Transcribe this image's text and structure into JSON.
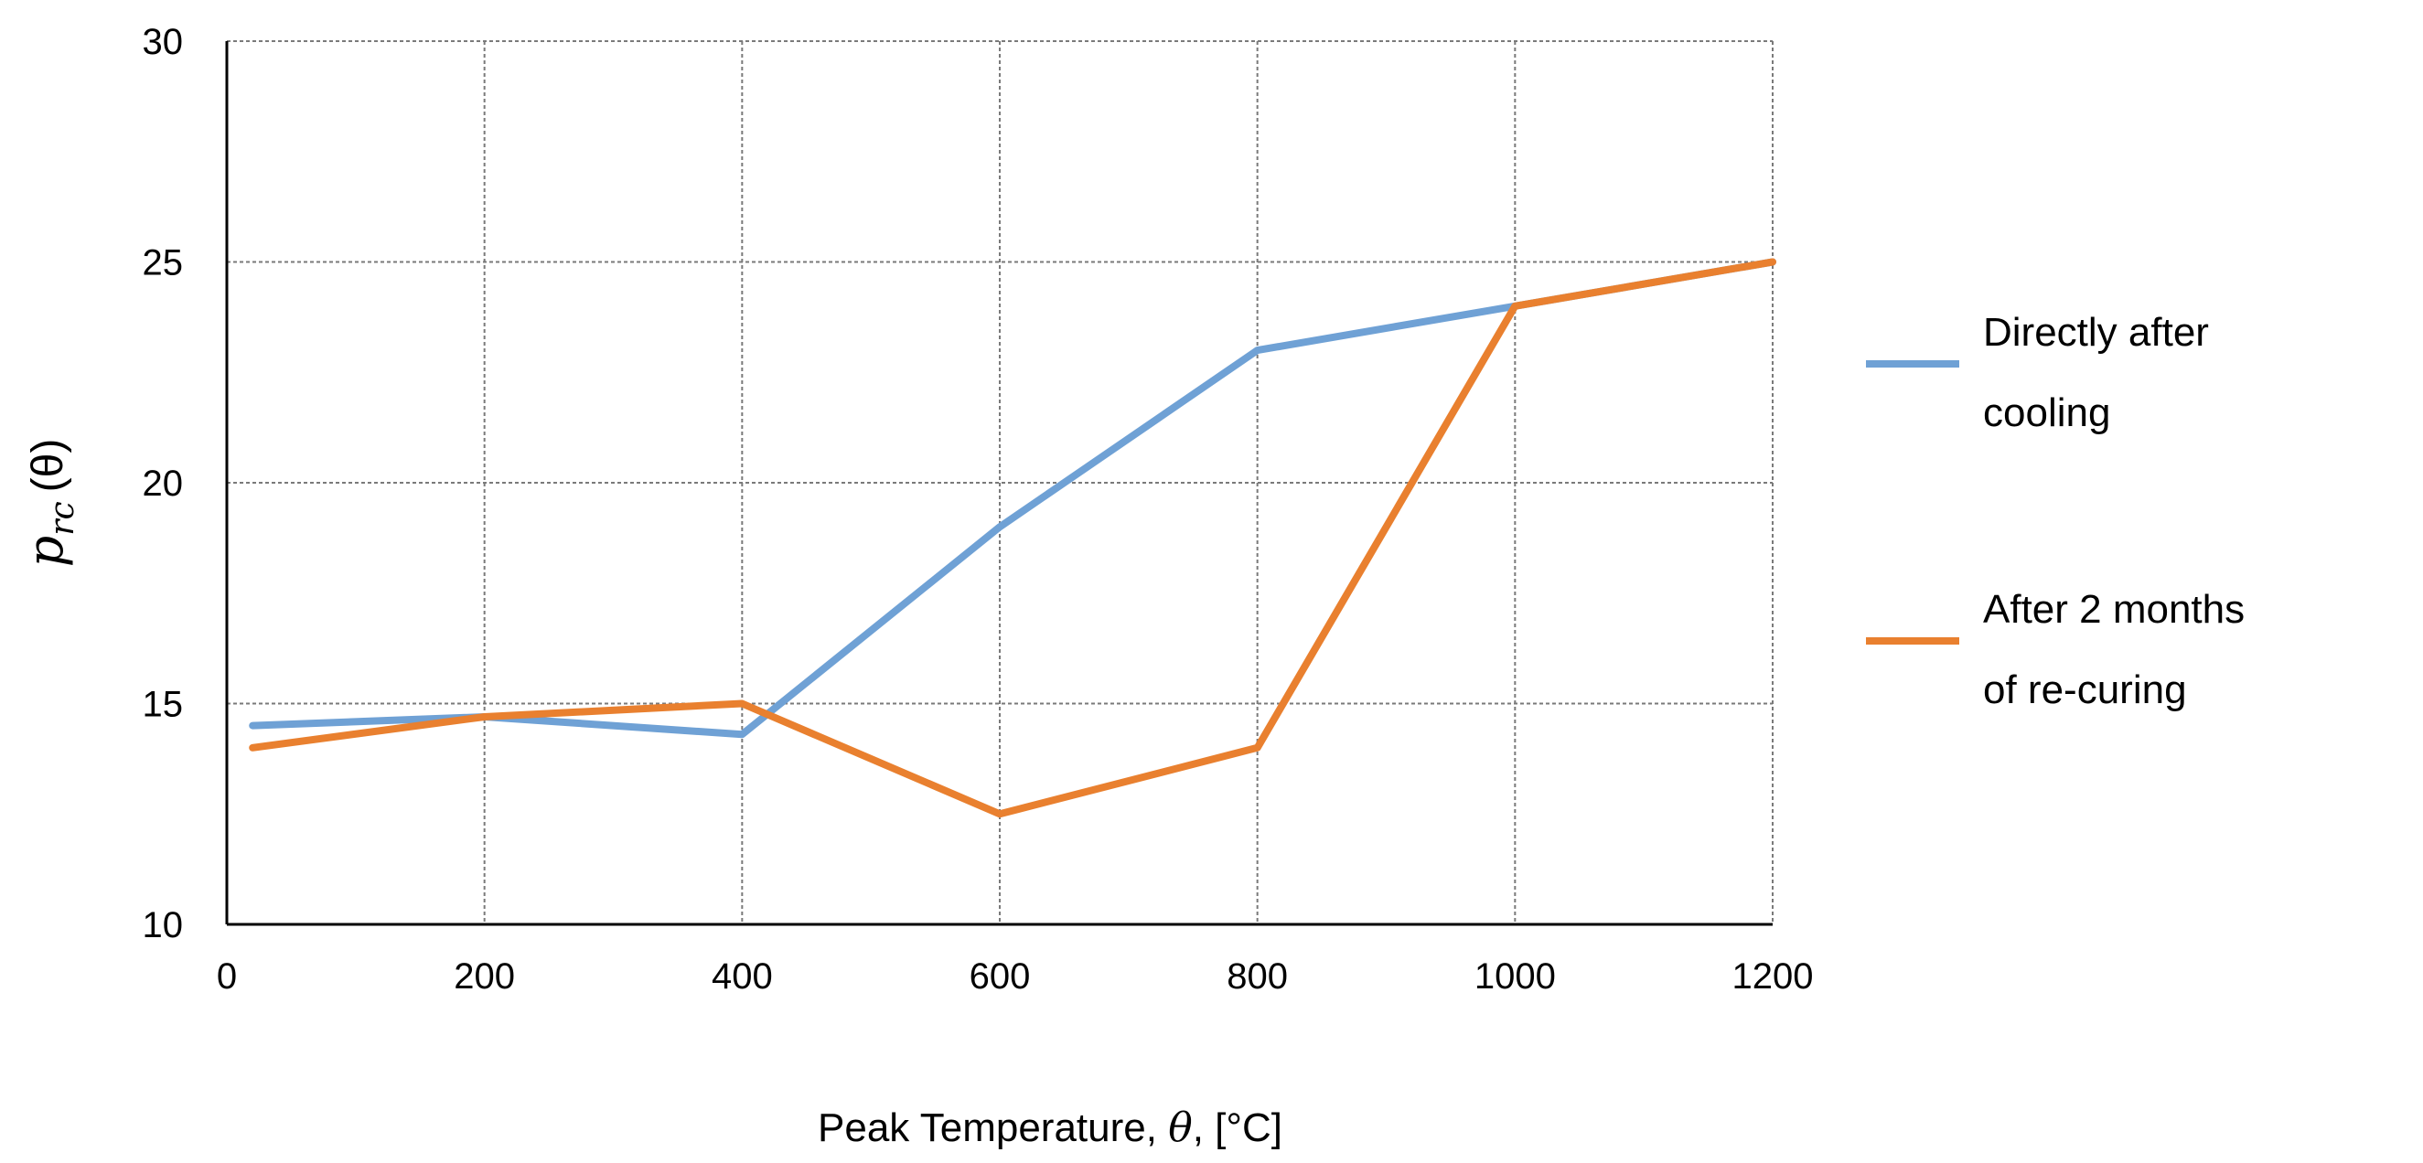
{
  "chart_data": {
    "type": "line",
    "title": "",
    "xlabel": "Peak Temperature, θ, [°C]",
    "xlabel_parts": {
      "prefix": "Peak Temperature, ",
      "symbol": "θ",
      "suffix": ", [°C]"
    },
    "ylabel": "p_rc (θ)",
    "ylabel_parts": {
      "base": "p",
      "subscript": "rc",
      "arg": "(θ)"
    },
    "xlim": [
      0,
      1200
    ],
    "ylim": [
      10,
      30
    ],
    "xticks": [
      0,
      200,
      400,
      600,
      800,
      1000,
      1200
    ],
    "yticks": [
      10,
      15,
      20,
      25,
      30
    ],
    "grid": true,
    "legend_position": "right",
    "series": [
      {
        "name": "Directly after cooling",
        "legend_lines": [
          "Directly after",
          "cooling"
        ],
        "color": "#6FA1D5",
        "x": [
          20,
          200,
          400,
          600,
          800,
          1000,
          1200
        ],
        "y": [
          14.5,
          14.7,
          14.3,
          19,
          23,
          24,
          25
        ]
      },
      {
        "name": "After 2 months of re-curing",
        "legend_lines": [
          "After 2 months",
          "of re-curing"
        ],
        "color": "#E9802F",
        "x": [
          20,
          200,
          400,
          600,
          800,
          1000,
          1200
        ],
        "y": [
          14,
          14.7,
          15,
          12.5,
          14,
          24,
          25
        ]
      }
    ]
  }
}
